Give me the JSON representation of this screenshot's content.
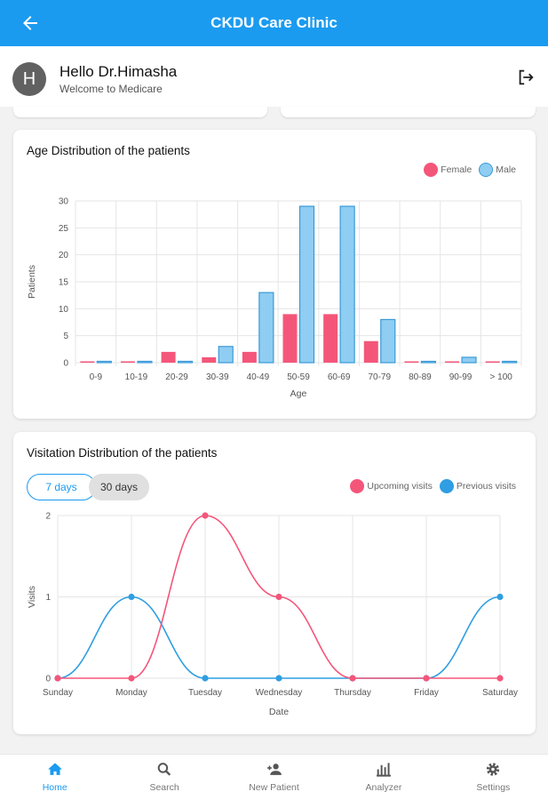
{
  "appbar": {
    "title": "CKDU Care Clinic"
  },
  "user": {
    "avatar_letter": "H",
    "greeting": "Hello Dr.Himasha",
    "subtitle": "Welcome to Medicare"
  },
  "age_card": {
    "title": "Age Distribution of the patients"
  },
  "visit_card": {
    "title": "Visitation Distribution of the patients",
    "chips": [
      "7 days",
      "30 days"
    ],
    "active_chip": "7 days"
  },
  "colors": {
    "primary": "#1a9bf0",
    "female": "#f4567a",
    "male": "#8fcdf2",
    "male_border": "#3a9ad8",
    "upcoming": "#f4567a",
    "previous": "#2f9ee2"
  },
  "nav": {
    "active": "Home",
    "items": [
      {
        "label": "Home",
        "icon": "home-icon"
      },
      {
        "label": "Search",
        "icon": "search-icon"
      },
      {
        "label": "New Patient",
        "icon": "add-person-icon"
      },
      {
        "label": "Analyzer",
        "icon": "bar-chart-icon"
      },
      {
        "label": "Settings",
        "icon": "gear-icon"
      }
    ]
  },
  "chart_data": [
    {
      "type": "bar",
      "title": "Age Distribution of the patients",
      "categories": [
        "0-9",
        "10-19",
        "20-29",
        "30-39",
        "40-49",
        "50-59",
        "60-69",
        "70-79",
        "80-89",
        "90-99",
        "> 100"
      ],
      "series": [
        {
          "name": "Female",
          "values": [
            0,
            0,
            2,
            1,
            2,
            9,
            9,
            4,
            0,
            0,
            0
          ]
        },
        {
          "name": "Male",
          "values": [
            0,
            0,
            0,
            3,
            13,
            29,
            29,
            8,
            0,
            1,
            0
          ]
        }
      ],
      "xlabel": "Age",
      "ylabel": "Patients",
      "ylim": [
        0,
        30
      ],
      "yticks": [
        0,
        5,
        10,
        15,
        20,
        25,
        30
      ],
      "grid": true,
      "legend": "top-right"
    },
    {
      "type": "line",
      "title": "Visitation Distribution of the patients",
      "categories": [
        "Sunday",
        "Monday",
        "Tuesday",
        "Wednesday",
        "Thursday",
        "Friday",
        "Saturday"
      ],
      "series": [
        {
          "name": "Upcoming visits",
          "values": [
            0,
            0,
            2,
            1,
            0,
            0,
            0
          ]
        },
        {
          "name": "Previous visits",
          "values": [
            0,
            1,
            0,
            0,
            0,
            0,
            1
          ]
        }
      ],
      "xlabel": "Date",
      "ylabel": "Visits",
      "ylim": [
        0,
        2
      ],
      "yticks": [
        0,
        1,
        2
      ],
      "grid": true,
      "legend": "top-right",
      "smooth": true
    }
  ]
}
